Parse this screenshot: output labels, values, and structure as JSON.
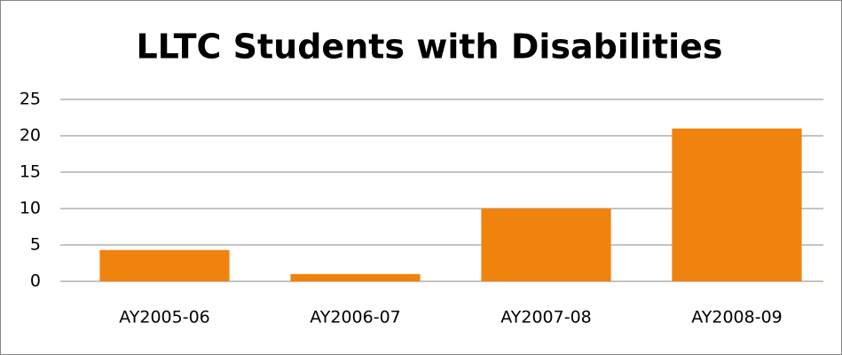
{
  "chart_data": {
    "type": "bar",
    "title": "LLTC Students with Disabilities",
    "categories": [
      "AY2005-06",
      "AY2006-07",
      "AY2007-08",
      "AY2008-09"
    ],
    "values": [
      4.3,
      1,
      10,
      21
    ],
    "color": "#f0820e",
    "ylim": [
      0,
      25
    ],
    "yticks": [
      0,
      5,
      10,
      15,
      20,
      25
    ],
    "grid": true
  }
}
